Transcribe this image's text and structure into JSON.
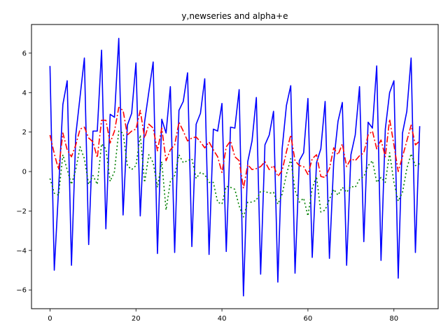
{
  "chart_data": {
    "type": "line",
    "title": "y,newseries and alpha+e",
    "xlabel": "",
    "ylabel": "",
    "xlim": [
      -4.3,
      90.3
    ],
    "ylim": [
      -6.95,
      7.45
    ],
    "xticks": [
      0,
      20,
      40,
      60,
      80
    ],
    "yticks": [
      -6,
      -4,
      -2,
      0,
      2,
      4,
      6
    ],
    "xtick_labels": [
      "0",
      "20",
      "40",
      "60",
      "80"
    ],
    "ytick_labels": [
      "−6",
      "−4",
      "−2",
      "0",
      "2",
      "4",
      "6"
    ],
    "grid": false,
    "series": [
      {
        "color": "#0000ff",
        "linestyle": "solid",
        "x": [
          0,
          1,
          2,
          3,
          4,
          5,
          6,
          7,
          8,
          9,
          10,
          11,
          12,
          13,
          14,
          15,
          16,
          17,
          18,
          19,
          20,
          21,
          22,
          23,
          24,
          25,
          26,
          27,
          28,
          29,
          30,
          31,
          32,
          33,
          34,
          35,
          36,
          37,
          38,
          39,
          40,
          41,
          42,
          43,
          44,
          45,
          46,
          47,
          48,
          49,
          50,
          51,
          52,
          53,
          54,
          55,
          56,
          57,
          58,
          59,
          60,
          61,
          62,
          63,
          64,
          65,
          66,
          67,
          68,
          69,
          70,
          71,
          72,
          73,
          74,
          75,
          76,
          77,
          78,
          79,
          80,
          81,
          82,
          83,
          84,
          85,
          86
        ],
        "values": [
          5.35,
          -5.0,
          -0.9,
          3.4,
          4.6,
          -4.75,
          1.85,
          3.8,
          5.75,
          -3.7,
          2.05,
          2.05,
          6.15,
          -2.9,
          2.9,
          2.75,
          6.75,
          -2.2,
          2.35,
          2.95,
          5.5,
          -2.25,
          2.5,
          4.05,
          5.55,
          -4.15,
          2.65,
          1.95,
          4.3,
          -4.1,
          3.1,
          3.55,
          5.0,
          -3.8,
          2.4,
          2.95,
          4.7,
          -4.2,
          2.15,
          2.05,
          3.45,
          -4.05,
          2.25,
          2.2,
          4.15,
          -6.3,
          0.5,
          1.55,
          3.75,
          -5.2,
          1.35,
          1.85,
          3.05,
          -5.6,
          1.15,
          3.35,
          4.35,
          -5.15,
          0.55,
          0.95,
          3.7,
          -4.35,
          0.45,
          1.15,
          3.55,
          -4.4,
          0.5,
          2.55,
          3.5,
          -4.75,
          0.85,
          1.85,
          4.3,
          -3.55,
          2.5,
          2.2,
          5.35,
          -4.5,
          2.15,
          4.0,
          4.6,
          -5.4,
          1.95,
          3.05,
          5.75,
          -4.1,
          2.3
        ]
      },
      {
        "color": "#ff0000",
        "linestyle": "dashdot",
        "x": [
          0,
          1,
          2,
          3,
          4,
          5,
          6,
          7,
          8,
          9,
          10,
          11,
          12,
          13,
          14,
          15,
          16,
          17,
          18,
          19,
          20,
          21,
          22,
          23,
          24,
          25,
          26,
          27,
          28,
          29,
          30,
          31,
          32,
          33,
          34,
          35,
          36,
          37,
          38,
          39,
          40,
          41,
          42,
          43,
          44,
          45,
          46,
          47,
          48,
          49,
          50,
          51,
          52,
          53,
          54,
          55,
          56,
          57,
          58,
          59,
          60,
          61,
          62,
          63,
          64,
          65,
          66,
          67,
          68,
          69,
          70,
          71,
          72,
          73,
          74,
          75,
          76,
          77,
          78,
          79,
          80,
          81,
          82,
          83,
          84,
          85,
          86
        ],
        "values": [
          1.85,
          0.9,
          0.1,
          1.95,
          1.1,
          0.75,
          1.35,
          2.15,
          2.25,
          1.7,
          1.5,
          0.7,
          2.6,
          2.6,
          1.45,
          2.05,
          3.25,
          3.1,
          1.85,
          2.05,
          2.15,
          3.1,
          1.7,
          2.4,
          2.2,
          1.05,
          2.2,
          0.55,
          1.1,
          1.35,
          2.5,
          2.05,
          1.55,
          1.7,
          1.75,
          1.5,
          1.2,
          1.5,
          1.1,
          0.75,
          -0.05,
          1.25,
          1.55,
          0.75,
          0.55,
          -0.85,
          0.35,
          0.1,
          0.15,
          0.25,
          0.5,
          0.1,
          0.3,
          -0.25,
          0.05,
          1.0,
          1.85,
          0.55,
          0.3,
          0.25,
          -0.15,
          0.65,
          0.85,
          -0.25,
          -0.3,
          0.15,
          1.2,
          0.85,
          1.4,
          0.25,
          0.65,
          0.55,
          0.8,
          0.95,
          1.85,
          2.05,
          1.15,
          1.6,
          0.75,
          2.65,
          1.35,
          0.0,
          0.75,
          1.55,
          2.35,
          1.35,
          1.55
        ]
      },
      {
        "color": "#007f00",
        "linestyle": "dotted",
        "x": [
          0,
          1,
          2,
          3,
          4,
          5,
          6,
          7,
          8,
          9,
          10,
          11,
          12,
          13,
          14,
          15,
          16,
          17,
          18,
          19,
          20,
          21,
          22,
          23,
          24,
          25,
          26,
          27,
          28,
          29,
          30,
          31,
          32,
          33,
          34,
          35,
          36,
          37,
          38,
          39,
          40,
          41,
          42,
          43,
          44,
          45,
          46,
          47,
          48,
          49,
          50,
          51,
          52,
          53,
          54,
          55,
          56,
          57,
          58,
          59,
          60,
          61,
          62,
          63,
          64,
          65,
          66,
          67,
          68,
          69,
          70,
          71,
          72,
          73,
          74,
          75,
          76,
          77,
          78,
          79,
          80,
          81,
          82,
          83,
          84,
          85,
          86
        ],
        "values": [
          -0.35,
          -1.1,
          -1.2,
          0.85,
          0.1,
          -0.65,
          0.1,
          1.25,
          0.65,
          -0.65,
          -0.2,
          -0.65,
          1.4,
          1.15,
          -0.5,
          0.0,
          2.05,
          1.95,
          0.3,
          0.1,
          0.3,
          1.85,
          -0.55,
          0.85,
          0.45,
          -0.8,
          0.5,
          -1.95,
          -0.5,
          -0.2,
          0.85,
          0.45,
          0.55,
          0.65,
          -0.35,
          -0.05,
          -0.15,
          -0.55,
          -0.55,
          -1.55,
          -1.65,
          -0.75,
          -0.8,
          -0.9,
          -1.75,
          -2.3,
          -1.55,
          -1.55,
          -1.45,
          -1.0,
          -1.0,
          -1.1,
          -1.05,
          -1.65,
          -1.15,
          -0.15,
          0.65,
          -0.95,
          -1.55,
          -1.35,
          -2.25,
          -0.85,
          -0.25,
          -2.05,
          -1.95,
          -1.4,
          -0.9,
          -1.2,
          -0.8,
          -1.05,
          -0.75,
          -0.8,
          -0.4,
          -0.25,
          0.3,
          0.55,
          -0.55,
          -0.3,
          -0.55,
          0.95,
          -0.55,
          -1.5,
          -1.05,
          0.15,
          0.9,
          0.3,
          0.4
        ]
      }
    ]
  }
}
